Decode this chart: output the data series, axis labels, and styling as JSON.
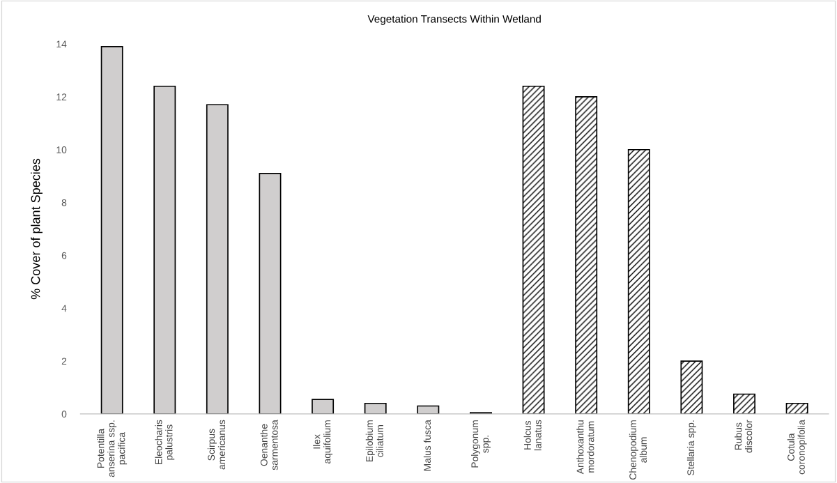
{
  "chart_data": {
    "type": "bar",
    "title": "Vegetation Transects Within Wetland",
    "ylabel": "% Cover of plant Species",
    "categories": [
      "Potentilla\nanserina ssp.\npacifica",
      "Eleocharis\npalustris",
      "Scirpus\namericanus",
      "Oenanthe\nsarmentosa",
      "Ilex\naquifolium",
      "Epilobium\nciliatum",
      "Malus fusca",
      "Polygonum\nspp.",
      "Holcus\nlanatus",
      "Anthoxanthu\nmordoratum",
      "Chenopodium\nalbum",
      "Stellaria spp.",
      "Rubus\ndiscolor",
      "Cotula\ncoronopifolia"
    ],
    "series": [
      {
        "color": "#d0cece",
        "values": [
          13.9,
          12.4,
          11.7,
          9.1,
          0.55,
          0.4,
          0.3,
          0.05,
          null,
          null,
          null,
          null,
          null,
          null
        ]
      },
      {
        "color": "#000000",
        "values": [
          null,
          null,
          null,
          null,
          null,
          null,
          null,
          null,
          12.4,
          12.0,
          10.0,
          2.0,
          0.75,
          0.4
        ]
      }
    ],
    "ylim": [
      0,
      14
    ],
    "yticks": [
      0,
      2,
      4,
      6,
      8,
      10,
      12,
      14
    ],
    "grid": false,
    "legend": false
  }
}
